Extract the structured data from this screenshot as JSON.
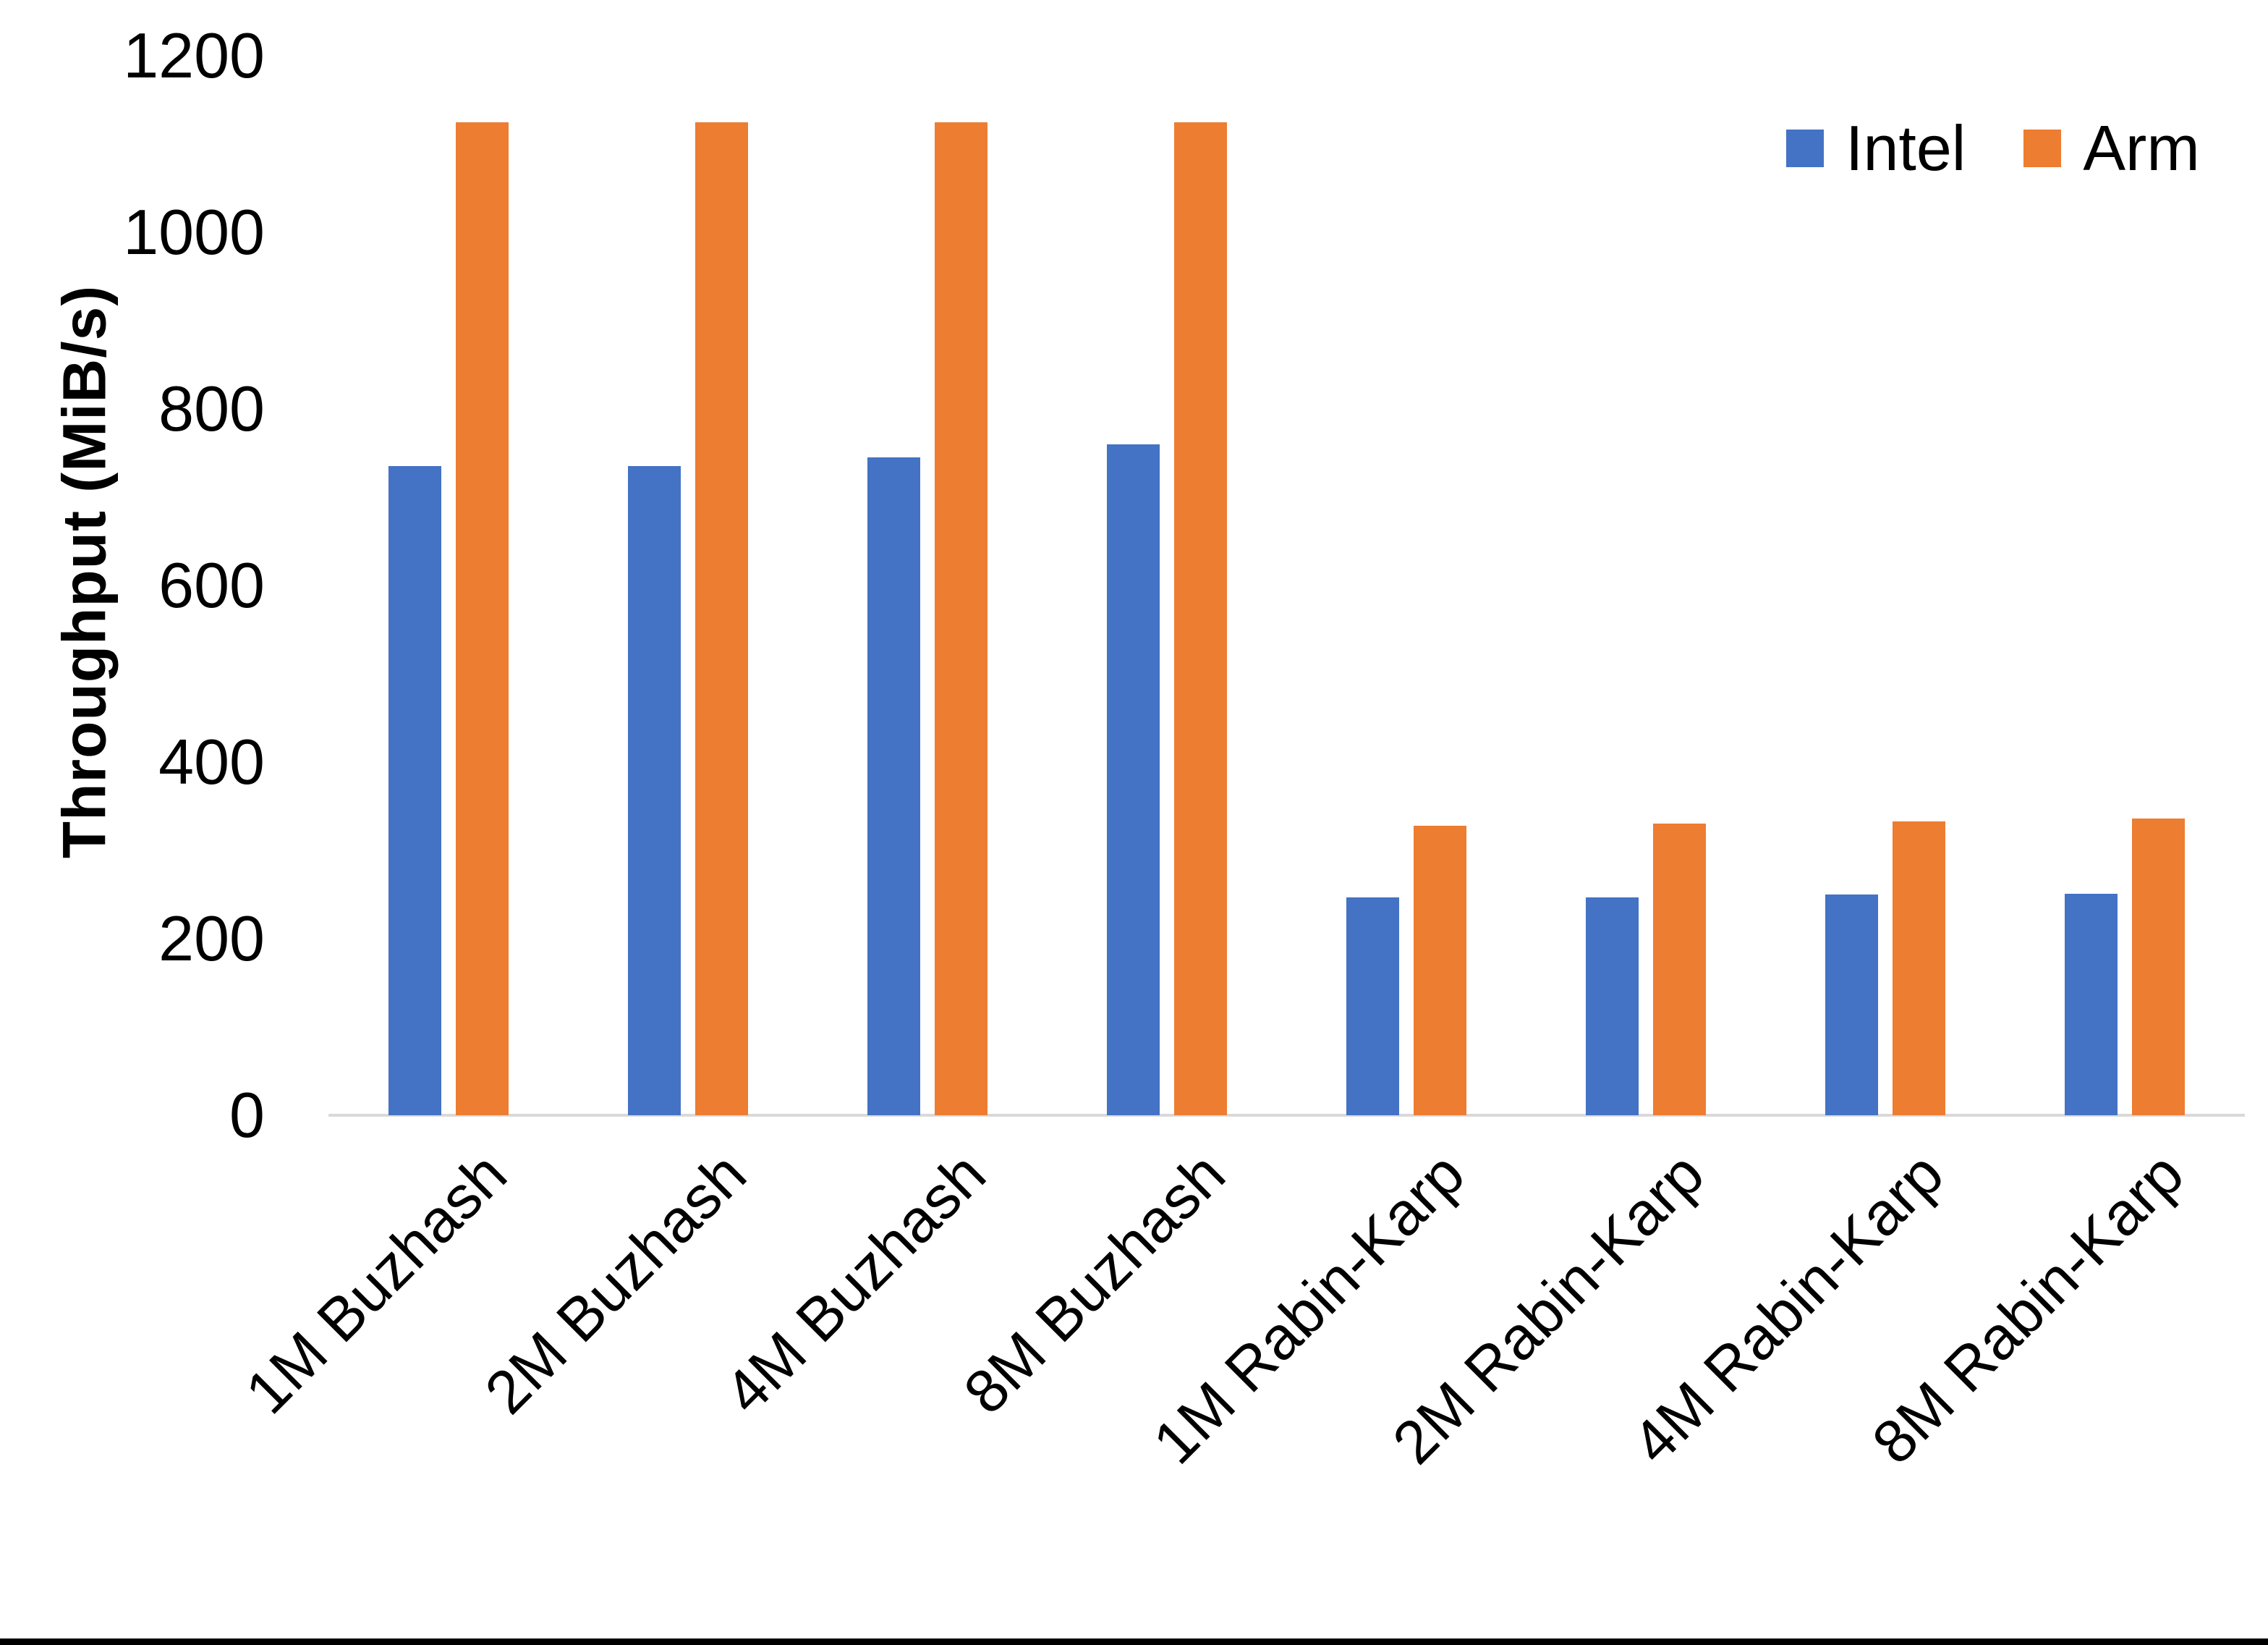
{
  "chart_data": {
    "type": "bar",
    "title": "",
    "xlabel": "",
    "ylabel": "Throughput (MiB/s)",
    "ylim": [
      0,
      1200
    ],
    "yticks": [
      0,
      200,
      400,
      600,
      800,
      1000,
      1200
    ],
    "grid": false,
    "legend_position": "top-right",
    "axis_line_color": "#d9d9d9",
    "categories": [
      "1M Buzhash",
      "2M Buzhash",
      "4M Buzhash",
      "8M Buzhash",
      "1M Rabin-Karp",
      "2M Rabin-Karp",
      "4M Rabin-Karp",
      "8M Rabin-Karp"
    ],
    "series": [
      {
        "name": "Intel",
        "color": "#4472C4",
        "values": [
          735,
          735,
          745,
          760,
          247,
          247,
          250,
          251
        ]
      },
      {
        "name": "Arm",
        "color": "#ED7D31",
        "values": [
          1125,
          1125,
          1125,
          1125,
          328,
          330,
          333,
          336
        ]
      }
    ]
  },
  "legend": {
    "items": [
      {
        "label": "Intel",
        "color": "#4472C4"
      },
      {
        "label": "Arm",
        "color": "#ED7D31"
      }
    ]
  },
  "colors": {
    "background": "#ffffff",
    "text": "#000000",
    "axis_line": "#d9d9d9",
    "intel": "#4472C4",
    "arm": "#ED7D31"
  }
}
